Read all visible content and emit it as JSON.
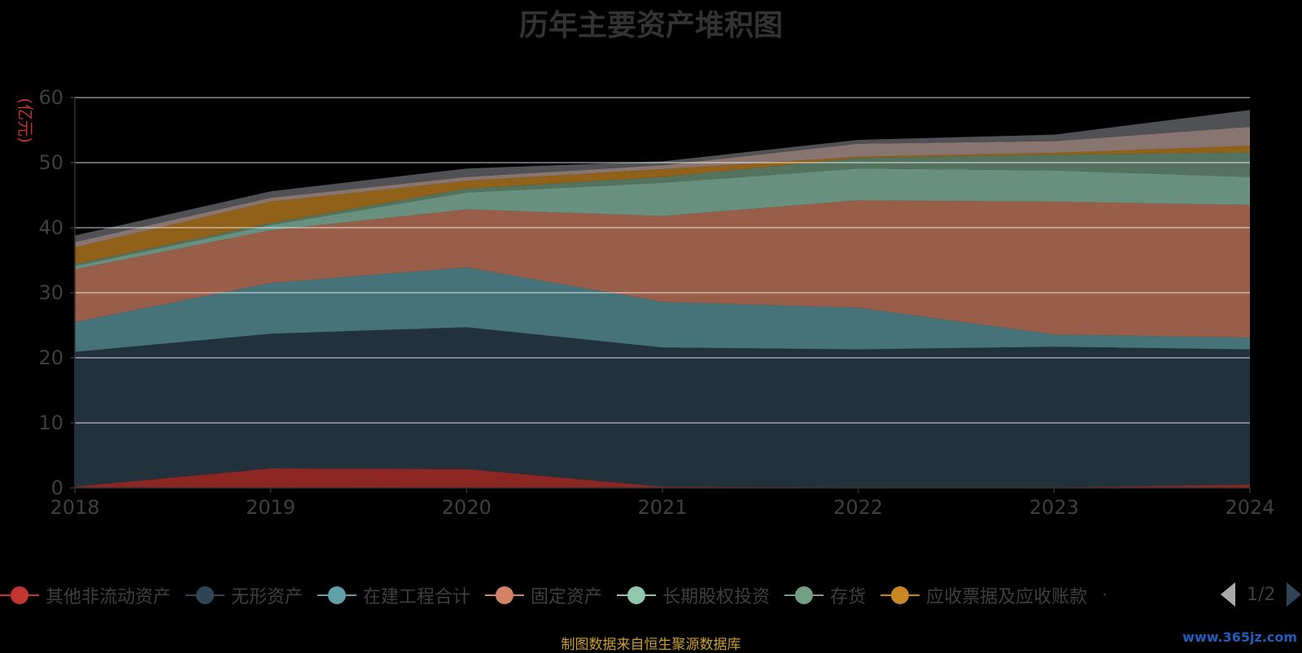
{
  "title": "历年主要资产堆积图",
  "unit_label": "(亿元)",
  "source_note": "制图数据来自恒生聚源数据库",
  "watermark": "www.365jz.com",
  "legend": {
    "overflow_indicator": "·",
    "page": "1/2"
  },
  "chart_data": {
    "type": "area",
    "stacked": true,
    "categories": [
      "2018",
      "2019",
      "2020",
      "2021",
      "2022",
      "2023",
      "2024"
    ],
    "ylabel": "(亿元)",
    "ylim": [
      0,
      60
    ],
    "yticks": [
      0,
      10,
      20,
      30,
      40,
      50,
      60
    ],
    "grid": true,
    "legend_position": "bottom",
    "series": [
      {
        "name": "其他非流动资产",
        "color": "#c23531",
        "values": [
          0.2,
          3.0,
          2.9,
          0.2,
          0.1,
          0.1,
          0.5
        ]
      },
      {
        "name": "无形资产",
        "color": "#2f4554",
        "values": [
          20.7,
          20.7,
          21.8,
          21.4,
          21.2,
          21.6,
          20.8
        ]
      },
      {
        "name": "在建工程合计",
        "color": "#61a0a8",
        "values": [
          4.6,
          7.8,
          9.2,
          7.0,
          6.4,
          1.9,
          1.8
        ]
      },
      {
        "name": "固定资产",
        "color": "#d48265",
        "values": [
          8.1,
          8.1,
          8.9,
          13.2,
          16.5,
          20.4,
          20.4
        ]
      },
      {
        "name": "长期股权投资",
        "color": "#91c7ae",
        "values": [
          0.5,
          0.8,
          2.6,
          5.1,
          4.9,
          4.8,
          4.3
        ]
      },
      {
        "name": "存货",
        "color": "#749f83",
        "values": [
          0.3,
          0.3,
          0.6,
          0.9,
          1.6,
          2.4,
          3.8
        ]
      },
      {
        "name": "应收票据及应收账款",
        "color": "#ca8622",
        "values": [
          2.6,
          3.3,
          1.2,
          1.2,
          0.2,
          0.3,
          1.0
        ]
      },
      {
        "values": [
          0.8,
          0.6,
          0.6,
          0.6,
          2.0,
          1.8,
          2.9
        ],
        "color": "#bda29a"
      },
      {
        "values": [
          1.0,
          1.0,
          1.3,
          0.6,
          0.6,
          1.0,
          2.6
        ],
        "color": "#6e7074"
      }
    ]
  }
}
